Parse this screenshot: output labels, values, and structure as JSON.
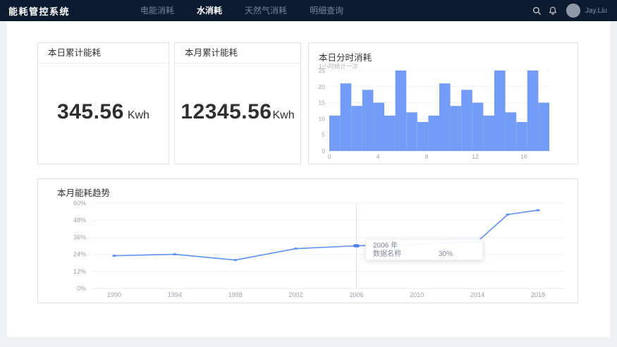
{
  "navbar": {
    "logo": "能耗管控系统",
    "items": [
      {
        "label": "电能消耗",
        "active": false
      },
      {
        "label": "水消耗",
        "active": true
      },
      {
        "label": "天然气消耗",
        "active": false
      },
      {
        "label": "明细查询",
        "active": false
      }
    ],
    "username": "Jay.Liu",
    "icons": [
      "search-icon",
      "bell-icon",
      "avatar"
    ],
    "navbar_color": "#0d1b30"
  },
  "stat_cards": [
    {
      "title": "本日累计能耗",
      "value": "345.56",
      "unit": "Kwh"
    },
    {
      "title": "本月累计能耗",
      "value": "12345.56",
      "unit": "Kwh"
    }
  ],
  "chart_data": [
    {
      "type": "bar",
      "title": "本日分时消耗",
      "subtitle": "1小时统计一次",
      "categories": [
        0,
        1,
        2,
        3,
        4,
        5,
        6,
        7,
        8,
        9,
        10,
        11,
        12,
        13,
        14,
        15,
        16,
        17,
        18,
        19
      ],
      "values": [
        11,
        21,
        14,
        19,
        15,
        11,
        25,
        12,
        9,
        11,
        21,
        14,
        19,
        15,
        11,
        25,
        12,
        9,
        25,
        15
      ],
      "xlabel": "",
      "ylabel": "",
      "ylim": [
        0,
        25
      ],
      "y_ticks": [
        0,
        5,
        10,
        15,
        20,
        25
      ],
      "x_ticks": [
        0,
        4,
        8,
        12,
        16
      ],
      "grid": true,
      "legend": false,
      "bar_color": "#729cf5"
    },
    {
      "type": "line",
      "title": "本月能耗趋势",
      "x": [
        1990,
        1994,
        1998,
        2002,
        2006,
        2010,
        2014,
        2016,
        2018
      ],
      "values": [
        23,
        24,
        20,
        28,
        30,
        31,
        33,
        52,
        55
      ],
      "unit": "%",
      "xlabel": "",
      "ylabel": "",
      "ylim": [
        0,
        60
      ],
      "y_ticks": [
        0,
        12,
        24,
        36,
        48,
        60
      ],
      "x_ticks": [
        1990,
        1994,
        1998,
        2002,
        2006,
        2010,
        2014,
        2018
      ],
      "grid": true,
      "legend": false,
      "line_color": "#5e8ff2",
      "emphasis_color": "#4b80ee",
      "tooltip": {
        "year": 2006,
        "title": "2006 年",
        "series_name": "数据名称",
        "value": "30%"
      }
    }
  ]
}
